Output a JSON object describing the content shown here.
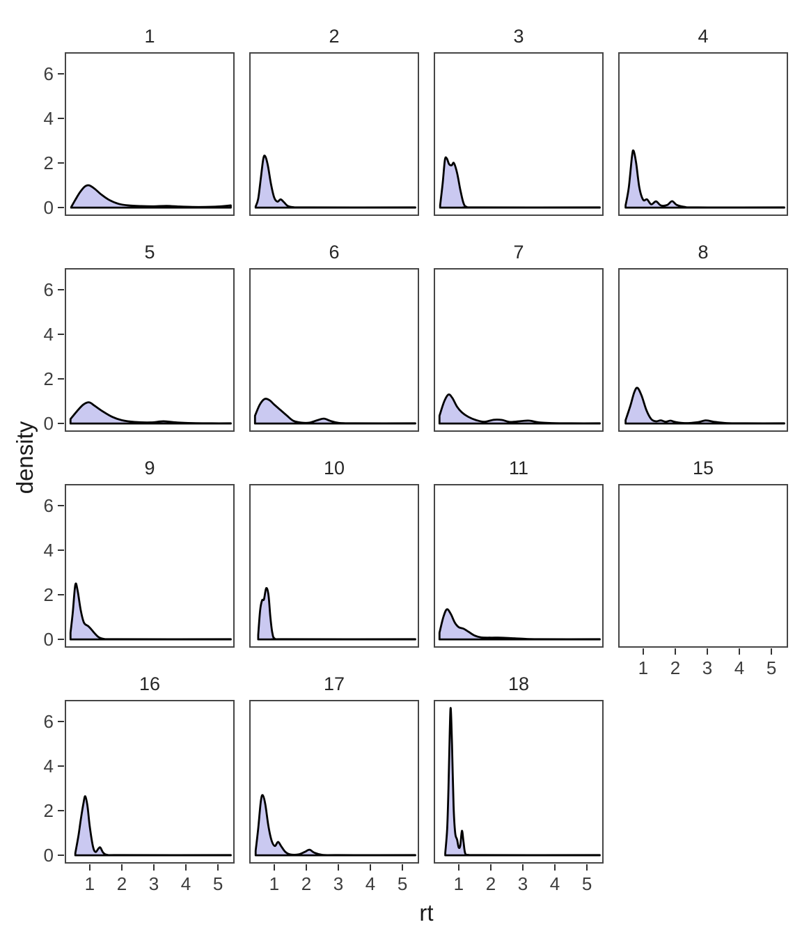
{
  "chart_data": {
    "type": "area",
    "variant": "faceted-density-plot",
    "title": "",
    "xlabel": "rt",
    "ylabel": "density",
    "x_ticks": [
      1,
      2,
      3,
      4,
      5
    ],
    "y_ticks": [
      0,
      2,
      4,
      6
    ],
    "xlim": [
      0.22,
      5.52
    ],
    "ylim": [
      -0.37,
      6.97
    ],
    "grid": false,
    "legend": false,
    "colors": {
      "fill": "#cac9f1",
      "line": "#000000",
      "panel_border": "#454545",
      "panel_background": "#ffffff",
      "tick_text": "#3d3d3d",
      "strip_text": "#262626",
      "axis_title_text": "#1a1a1a"
    },
    "layout_hint": {
      "columns": 4,
      "facet_order": [
        "1",
        "2",
        "3",
        "4",
        "5",
        "6",
        "7",
        "8",
        "9",
        "10",
        "11",
        "15",
        "16",
        "17",
        "18"
      ],
      "legend_position": "none"
    },
    "facets": [
      {
        "label": "1",
        "points": [
          [
            0.42,
            0.02
          ],
          [
            0.55,
            0.35
          ],
          [
            0.7,
            0.7
          ],
          [
            0.85,
            0.95
          ],
          [
            0.98,
            1.0
          ],
          [
            1.15,
            0.85
          ],
          [
            1.35,
            0.6
          ],
          [
            1.6,
            0.35
          ],
          [
            1.9,
            0.17
          ],
          [
            2.2,
            0.1
          ],
          [
            2.6,
            0.07
          ],
          [
            3.0,
            0.06
          ],
          [
            3.4,
            0.08
          ],
          [
            3.8,
            0.05
          ],
          [
            4.2,
            0.03
          ],
          [
            4.6,
            0.03
          ],
          [
            5.0,
            0.05
          ],
          [
            5.4,
            0.1
          ]
        ]
      },
      {
        "label": "2",
        "points": [
          [
            0.42,
            0.05
          ],
          [
            0.5,
            0.4
          ],
          [
            0.58,
            1.3
          ],
          [
            0.66,
            2.2
          ],
          [
            0.72,
            2.3
          ],
          [
            0.8,
            1.9
          ],
          [
            0.9,
            1.05
          ],
          [
            1.0,
            0.45
          ],
          [
            1.1,
            0.27
          ],
          [
            1.2,
            0.37
          ],
          [
            1.3,
            0.25
          ],
          [
            1.42,
            0.08
          ],
          [
            1.6,
            0.02
          ],
          [
            2.0,
            0.01
          ],
          [
            5.4,
            0.01
          ]
        ]
      },
      {
        "label": "3",
        "points": [
          [
            0.42,
            0.1
          ],
          [
            0.5,
            1.1
          ],
          [
            0.57,
            2.15
          ],
          [
            0.63,
            2.2
          ],
          [
            0.7,
            1.95
          ],
          [
            0.78,
            1.9
          ],
          [
            0.85,
            2.0
          ],
          [
            0.95,
            1.55
          ],
          [
            1.05,
            0.8
          ],
          [
            1.15,
            0.2
          ],
          [
            1.25,
            0.03
          ],
          [
            1.5,
            0.01
          ],
          [
            5.4,
            0.01
          ]
        ]
      },
      {
        "label": "4",
        "points": [
          [
            0.45,
            0.1
          ],
          [
            0.55,
            0.9
          ],
          [
            0.65,
            2.3
          ],
          [
            0.7,
            2.55
          ],
          [
            0.78,
            2.0
          ],
          [
            0.88,
            0.9
          ],
          [
            1.0,
            0.35
          ],
          [
            1.12,
            0.37
          ],
          [
            1.25,
            0.15
          ],
          [
            1.4,
            0.28
          ],
          [
            1.55,
            0.1
          ],
          [
            1.75,
            0.12
          ],
          [
            1.9,
            0.29
          ],
          [
            2.05,
            0.12
          ],
          [
            2.3,
            0.03
          ],
          [
            2.7,
            0.01
          ],
          [
            5.4,
            0.01
          ]
        ]
      },
      {
        "label": "5",
        "points": [
          [
            0.4,
            0.2
          ],
          [
            0.6,
            0.55
          ],
          [
            0.8,
            0.85
          ],
          [
            0.98,
            0.95
          ],
          [
            1.15,
            0.8
          ],
          [
            1.4,
            0.55
          ],
          [
            1.7,
            0.3
          ],
          [
            2.0,
            0.15
          ],
          [
            2.4,
            0.07
          ],
          [
            2.9,
            0.05
          ],
          [
            3.3,
            0.1
          ],
          [
            3.7,
            0.05
          ],
          [
            4.2,
            0.02
          ],
          [
            4.8,
            0.01
          ],
          [
            5.4,
            0.01
          ]
        ]
      },
      {
        "label": "6",
        "points": [
          [
            0.4,
            0.35
          ],
          [
            0.55,
            0.85
          ],
          [
            0.7,
            1.1
          ],
          [
            0.85,
            1.05
          ],
          [
            1.0,
            0.85
          ],
          [
            1.2,
            0.6
          ],
          [
            1.4,
            0.35
          ],
          [
            1.6,
            0.12
          ],
          [
            1.85,
            0.04
          ],
          [
            2.1,
            0.04
          ],
          [
            2.35,
            0.15
          ],
          [
            2.55,
            0.22
          ],
          [
            2.75,
            0.12
          ],
          [
            3.0,
            0.03
          ],
          [
            3.5,
            0.01
          ],
          [
            5.4,
            0.01
          ]
        ]
      },
      {
        "label": "7",
        "points": [
          [
            0.4,
            0.35
          ],
          [
            0.55,
            1.0
          ],
          [
            0.68,
            1.3
          ],
          [
            0.8,
            1.15
          ],
          [
            0.95,
            0.75
          ],
          [
            1.1,
            0.5
          ],
          [
            1.3,
            0.3
          ],
          [
            1.55,
            0.15
          ],
          [
            1.8,
            0.08
          ],
          [
            2.1,
            0.17
          ],
          [
            2.35,
            0.16
          ],
          [
            2.6,
            0.07
          ],
          [
            2.95,
            0.11
          ],
          [
            3.2,
            0.13
          ],
          [
            3.5,
            0.05
          ],
          [
            3.9,
            0.02
          ],
          [
            4.5,
            0.01
          ],
          [
            5.4,
            0.01
          ]
        ]
      },
      {
        "label": "8",
        "points": [
          [
            0.45,
            0.15
          ],
          [
            0.6,
            0.8
          ],
          [
            0.72,
            1.4
          ],
          [
            0.82,
            1.6
          ],
          [
            0.95,
            1.25
          ],
          [
            1.1,
            0.6
          ],
          [
            1.25,
            0.2
          ],
          [
            1.4,
            0.1
          ],
          [
            1.55,
            0.14
          ],
          [
            1.7,
            0.08
          ],
          [
            1.85,
            0.13
          ],
          [
            2.0,
            0.07
          ],
          [
            2.3,
            0.02
          ],
          [
            2.7,
            0.06
          ],
          [
            2.95,
            0.14
          ],
          [
            3.2,
            0.08
          ],
          [
            3.6,
            0.02
          ],
          [
            4.2,
            0.01
          ],
          [
            5.4,
            0.01
          ]
        ]
      },
      {
        "label": "9",
        "points": [
          [
            0.4,
            0.3
          ],
          [
            0.47,
            1.2
          ],
          [
            0.55,
            2.45
          ],
          [
            0.62,
            2.2
          ],
          [
            0.72,
            1.3
          ],
          [
            0.82,
            0.75
          ],
          [
            0.95,
            0.6
          ],
          [
            1.05,
            0.45
          ],
          [
            1.15,
            0.28
          ],
          [
            1.28,
            0.1
          ],
          [
            1.45,
            0.02
          ],
          [
            1.8,
            0.01
          ],
          [
            5.4,
            0.01
          ]
        ]
      },
      {
        "label": "10",
        "points": [
          [
            0.5,
            0.2
          ],
          [
            0.56,
            1.3
          ],
          [
            0.62,
            1.75
          ],
          [
            0.68,
            1.8
          ],
          [
            0.75,
            2.3
          ],
          [
            0.82,
            2.0
          ],
          [
            0.88,
            1.0
          ],
          [
            0.94,
            0.3
          ],
          [
            1.02,
            0.03
          ],
          [
            1.3,
            0.01
          ],
          [
            5.4,
            0.01
          ]
        ]
      },
      {
        "label": "11",
        "points": [
          [
            0.4,
            0.3
          ],
          [
            0.52,
            1.0
          ],
          [
            0.63,
            1.35
          ],
          [
            0.75,
            1.15
          ],
          [
            0.88,
            0.75
          ],
          [
            1.0,
            0.55
          ],
          [
            1.15,
            0.48
          ],
          [
            1.3,
            0.35
          ],
          [
            1.5,
            0.17
          ],
          [
            1.7,
            0.09
          ],
          [
            2.0,
            0.08
          ],
          [
            2.3,
            0.08
          ],
          [
            2.6,
            0.06
          ],
          [
            3.0,
            0.03
          ],
          [
            3.5,
            0.01
          ],
          [
            5.4,
            0.01
          ]
        ]
      },
      {
        "label": "15",
        "points": []
      },
      {
        "label": "16",
        "points": [
          [
            0.55,
            0.1
          ],
          [
            0.65,
            0.9
          ],
          [
            0.72,
            1.6
          ],
          [
            0.8,
            2.3
          ],
          [
            0.86,
            2.65
          ],
          [
            0.93,
            2.2
          ],
          [
            1.0,
            1.3
          ],
          [
            1.1,
            0.4
          ],
          [
            1.18,
            0.15
          ],
          [
            1.27,
            0.3
          ],
          [
            1.33,
            0.35
          ],
          [
            1.42,
            0.12
          ],
          [
            1.55,
            0.02
          ],
          [
            1.9,
            0.01
          ],
          [
            5.4,
            0.01
          ]
        ]
      },
      {
        "label": "17",
        "points": [
          [
            0.42,
            0.2
          ],
          [
            0.5,
            1.2
          ],
          [
            0.58,
            2.4
          ],
          [
            0.64,
            2.7
          ],
          [
            0.72,
            2.3
          ],
          [
            0.82,
            1.3
          ],
          [
            0.92,
            0.65
          ],
          [
            1.02,
            0.42
          ],
          [
            1.12,
            0.6
          ],
          [
            1.22,
            0.4
          ],
          [
            1.35,
            0.15
          ],
          [
            1.5,
            0.04
          ],
          [
            1.75,
            0.04
          ],
          [
            1.95,
            0.15
          ],
          [
            2.1,
            0.25
          ],
          [
            2.25,
            0.12
          ],
          [
            2.5,
            0.02
          ],
          [
            3.0,
            0.01
          ],
          [
            5.4,
            0.01
          ]
        ]
      },
      {
        "label": "18",
        "points": [
          [
            0.58,
            0.1
          ],
          [
            0.64,
            1.2
          ],
          [
            0.68,
            3.0
          ],
          [
            0.72,
            5.5
          ],
          [
            0.75,
            6.6
          ],
          [
            0.79,
            5.0
          ],
          [
            0.84,
            2.2
          ],
          [
            0.89,
            1.0
          ],
          [
            0.95,
            0.7
          ],
          [
            1.0,
            0.35
          ],
          [
            1.05,
            0.45
          ],
          [
            1.1,
            1.1
          ],
          [
            1.15,
            0.6
          ],
          [
            1.2,
            0.1
          ],
          [
            1.3,
            0.02
          ],
          [
            1.7,
            0.01
          ],
          [
            5.4,
            0.01
          ]
        ]
      }
    ]
  }
}
